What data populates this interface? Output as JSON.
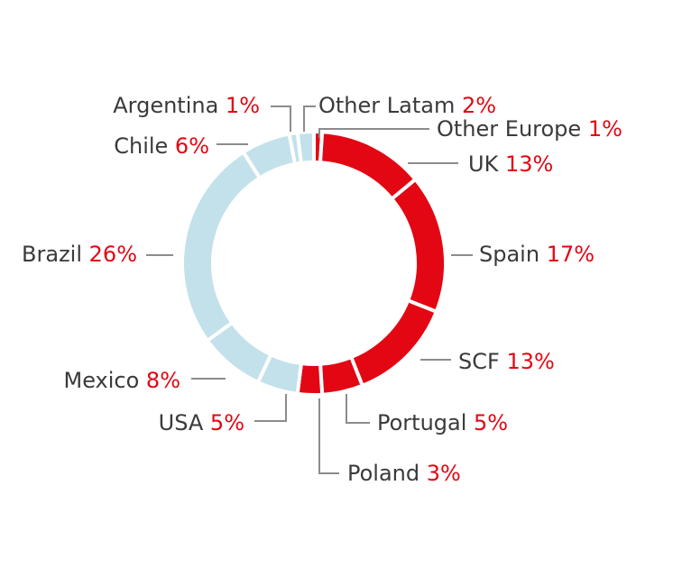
{
  "chart_data": {
    "type": "pie",
    "donut": true,
    "title": "",
    "slices": [
      {
        "label": "Other Europe",
        "value": 1,
        "value_label": "1%",
        "color": "#e30613"
      },
      {
        "label": "UK",
        "value": 13,
        "value_label": "13%",
        "color": "#e30613"
      },
      {
        "label": "Spain",
        "value": 17,
        "value_label": "17%",
        "color": "#e30613"
      },
      {
        "label": "SCF",
        "value": 13,
        "value_label": "13%",
        "color": "#e30613"
      },
      {
        "label": "Portugal",
        "value": 5,
        "value_label": "5%",
        "color": "#e30613"
      },
      {
        "label": "Poland",
        "value": 3,
        "value_label": "3%",
        "color": "#e30613"
      },
      {
        "label": "USA",
        "value": 5,
        "value_label": "5%",
        "color": "#c3e1ea"
      },
      {
        "label": "Mexico",
        "value": 8,
        "value_label": "8%",
        "color": "#c3e1ea"
      },
      {
        "label": "Brazil",
        "value": 26,
        "value_label": "26%",
        "color": "#c3e1ea"
      },
      {
        "label": "Chile",
        "value": 6,
        "value_label": "6%",
        "color": "#c3e1ea"
      },
      {
        "label": "Argentina",
        "value": 1,
        "value_label": "1%",
        "color": "#c3e1ea"
      },
      {
        "label": "Other Latam",
        "value": 2,
        "value_label": "2%",
        "color": "#c3e1ea"
      }
    ]
  }
}
